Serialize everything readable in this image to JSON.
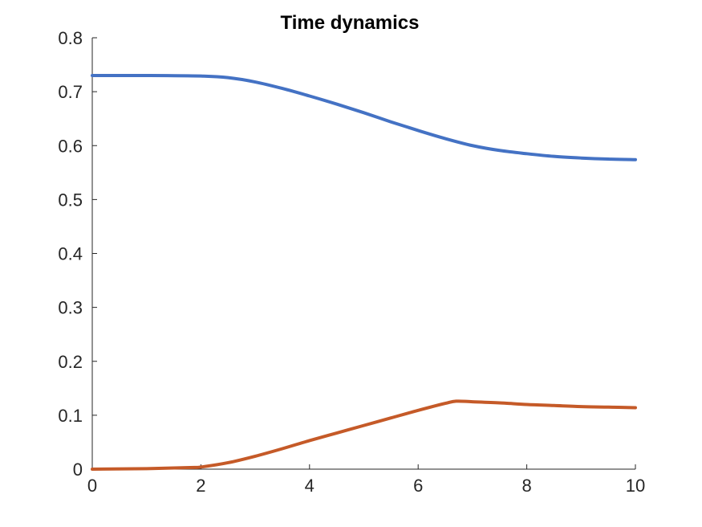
{
  "chart_data": {
    "type": "line",
    "title": "Time dynamics",
    "xlabel": "",
    "ylabel": "",
    "xlim": [
      0,
      10
    ],
    "ylim": [
      0,
      0.8
    ],
    "x_ticks": [
      "0",
      "2",
      "4",
      "6",
      "8",
      "10"
    ],
    "y_ticks": [
      "0",
      "0.1",
      "0.2",
      "0.3",
      "0.4",
      "0.5",
      "0.6",
      "0.7",
      "0.8"
    ],
    "grid": false,
    "legend": "none",
    "series": [
      {
        "color": "#4472C4",
        "x": [
          0,
          1,
          2,
          2.5,
          3,
          3.5,
          4,
          4.5,
          5,
          5.5,
          6,
          6.5,
          7,
          7.5,
          8,
          8.5,
          9,
          9.5,
          10
        ],
        "y": [
          0.73,
          0.73,
          0.729,
          0.726,
          0.718,
          0.706,
          0.692,
          0.677,
          0.661,
          0.644,
          0.628,
          0.613,
          0.6,
          0.591,
          0.585,
          0.58,
          0.577,
          0.575,
          0.574
        ]
      },
      {
        "color": "#C55A28",
        "x": [
          0,
          1,
          1.8,
          2,
          2.5,
          3,
          3.5,
          4,
          4.5,
          5,
          5.5,
          6,
          6.5,
          6.7,
          7,
          7.5,
          8,
          8.5,
          9,
          9.5,
          10
        ],
        "y": [
          0.0,
          0.001,
          0.003,
          0.004,
          0.012,
          0.024,
          0.038,
          0.053,
          0.067,
          0.081,
          0.095,
          0.109,
          0.122,
          0.126,
          0.125,
          0.123,
          0.12,
          0.118,
          0.116,
          0.115,
          0.114
        ]
      }
    ]
  }
}
